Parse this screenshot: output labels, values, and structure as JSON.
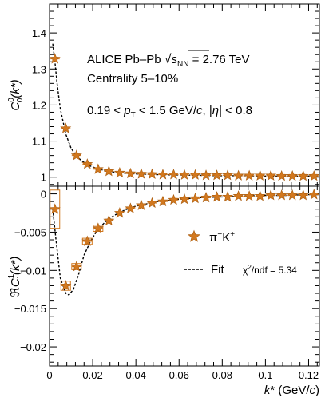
{
  "chart_data": [
    {
      "type": "scatter",
      "panel": "top",
      "xlim": [
        0,
        0.125
      ],
      "ylim": [
        0.975,
        1.48
      ],
      "yticks": [
        1,
        1.1,
        1.2,
        1.3,
        1.4
      ],
      "ytick_labels": [
        "1",
        "1.1",
        "1.2",
        "1.3",
        "1.4"
      ],
      "ylabel": {
        "main": "C",
        "sup": "0",
        "sub": "0",
        "arg": "(k*)"
      },
      "annotations": {
        "line1_prefix": "ALICE Pb–Pb ",
        "line1_sqrt_sym": "s",
        "line1_sqrt_sub": "NN",
        "line1_suffix": " = 2.76 TeV",
        "line2": "Centrality 5–10%",
        "line3_a": "0.19 < ",
        "line3_p": "p",
        "line3_t": "T",
        "line3_b": " < 1.5 GeV/",
        "line3_c": "c",
        "line3_d": ", |",
        "line3_eta": "η",
        "line3_e": "| < 0.8"
      },
      "series": [
        {
          "marker": "star",
          "color": "#d2781e",
          "x": [
            0.0025,
            0.0075,
            0.0125,
            0.0175,
            0.0225,
            0.0275,
            0.0325,
            0.0375,
            0.0425,
            0.0475,
            0.0525,
            0.0575,
            0.0625,
            0.0675,
            0.0725,
            0.0775,
            0.0825,
            0.0875,
            0.0925,
            0.0975,
            0.1025,
            0.1075,
            0.1125,
            0.1175,
            0.1225
          ],
          "y": [
            1.328,
            1.135,
            1.06,
            1.036,
            1.022,
            1.016,
            1.012,
            1.01,
            1.009,
            1.008,
            1.007,
            1.007,
            1.006,
            1.006,
            1.005,
            1.005,
            1.005,
            1.004,
            1.004,
            1.004,
            1.004,
            1.003,
            1.003,
            1.003,
            1.003
          ]
        }
      ],
      "fit_curve": {
        "style": "dashed",
        "x": [
          0.0015,
          0.0025,
          0.0035,
          0.005,
          0.0075,
          0.01,
          0.0125,
          0.015,
          0.0175,
          0.02,
          0.025,
          0.03,
          0.035,
          0.04,
          0.05,
          0.06,
          0.07,
          0.08,
          0.09,
          0.1,
          0.11,
          0.12,
          0.125
        ],
        "y": [
          1.37,
          1.32,
          1.26,
          1.19,
          1.12,
          1.08,
          1.058,
          1.045,
          1.035,
          1.028,
          1.019,
          1.014,
          1.011,
          1.009,
          1.007,
          1.006,
          1.005,
          1.004,
          1.004,
          1.003,
          1.003,
          1.003,
          1.003
        ]
      }
    },
    {
      "type": "scatter",
      "panel": "bottom",
      "xlim": [
        0,
        0.125
      ],
      "ylim": [
        -0.0225,
        0.001
      ],
      "yticks": [
        0,
        -0.005,
        -0.01,
        -0.015,
        -0.02
      ],
      "ytick_labels": [
        "0",
        "−0.005",
        "−0.01",
        "−0.015",
        "−0.02"
      ],
      "xticks": [
        0,
        0.02,
        0.04,
        0.06,
        0.08,
        0.1,
        0.12
      ],
      "xtick_labels": [
        "0",
        "0.02",
        "0.04",
        "0.06",
        "0.08",
        "0.1",
        "0.12"
      ],
      "xlabel": {
        "main": "k* (GeV/",
        "c": "c",
        "end": ")"
      },
      "ylabel": {
        "prefix": "ℜ",
        "main": "C",
        "sup": "1",
        "sub": "1",
        "arg": "(k*)"
      },
      "legend": {
        "placement": "right",
        "entries": [
          {
            "label_main": "π",
            "label_sup1": "−",
            "label_k": "K",
            "label_sup2": "+"
          },
          {
            "label": "Fit",
            "chi_label": "χ",
            "chi_sup": "2",
            "chi_rest": "/ndf = 5.34"
          }
        ]
      },
      "series": [
        {
          "marker": "star",
          "color": "#d2781e",
          "x": [
            0.0025,
            0.0075,
            0.0125,
            0.0175,
            0.0225,
            0.0275,
            0.0325,
            0.0375,
            0.0425,
            0.0475,
            0.0525,
            0.0575,
            0.0625,
            0.0675,
            0.0725,
            0.0775,
            0.0825,
            0.0875,
            0.0925,
            0.0975,
            0.1025,
            0.1075,
            0.1125,
            0.1175,
            0.1225
          ],
          "y": [
            -0.002,
            -0.012,
            -0.0095,
            -0.0062,
            -0.0045,
            -0.0035,
            -0.0025,
            -0.0019,
            -0.0015,
            -0.0012,
            -0.001,
            -0.0008,
            -0.0007,
            -0.0006,
            -0.0005,
            -0.0004,
            -0.0004,
            -0.0003,
            -0.0003,
            -0.0003,
            -0.0002,
            -0.0002,
            -0.0002,
            -0.0002,
            -0.0001
          ],
          "syst_box": [
            true,
            true,
            true,
            true,
            true,
            false,
            false,
            false,
            false,
            false,
            false,
            false,
            false,
            false,
            false,
            false,
            false,
            false,
            false,
            false,
            false,
            false,
            false,
            false,
            false
          ],
          "syst_half_height": [
            0.0025,
            0.0006,
            0.0004,
            0.0004,
            0.0004,
            0,
            0,
            0,
            0,
            0,
            0,
            0,
            0,
            0,
            0,
            0,
            0,
            0,
            0,
            0,
            0,
            0,
            0,
            0,
            0
          ]
        }
      ],
      "fit_curve": {
        "style": "dashed",
        "x": [
          0.0015,
          0.003,
          0.005,
          0.0075,
          0.009,
          0.011,
          0.0135,
          0.016,
          0.019,
          0.022,
          0.026,
          0.03,
          0.035,
          0.04,
          0.05,
          0.06,
          0.07,
          0.08,
          0.09,
          0.1,
          0.11,
          0.12,
          0.125
        ],
        "y": [
          -0.002,
          -0.006,
          -0.011,
          -0.013,
          -0.0132,
          -0.0125,
          -0.0105,
          -0.008,
          -0.0062,
          -0.0048,
          -0.0036,
          -0.0028,
          -0.0021,
          -0.0016,
          -0.001,
          -0.0007,
          -0.0005,
          -0.0004,
          -0.0003,
          -0.0002,
          -0.0002,
          -0.0001,
          -0.0001
        ]
      }
    }
  ]
}
